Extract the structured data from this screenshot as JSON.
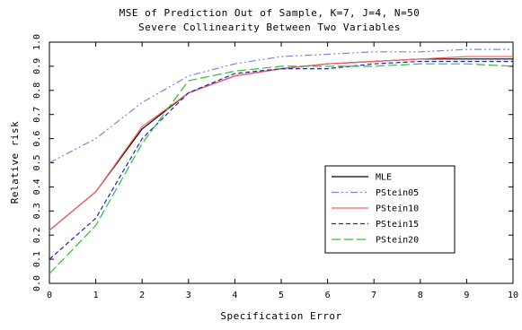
{
  "chart_data": {
    "type": "line",
    "title": "MSE of Prediction Out of Sample, K=7, J=4, N=50",
    "subtitle": "Severe Collinearity Between Two Variables",
    "xlabel": "Specification Error",
    "ylabel": "Relative risk",
    "xlim": [
      0,
      10
    ],
    "ylim": [
      0.0,
      1.0
    ],
    "x_ticks": [
      "0",
      "1",
      "2",
      "3",
      "4",
      "5",
      "6",
      "7",
      "8",
      "9",
      "10"
    ],
    "y_ticks": [
      "0.0",
      "0.1",
      "0.2",
      "0.3",
      "0.4",
      "0.5",
      "0.6",
      "0.7",
      "0.8",
      "0.9",
      "1.0"
    ],
    "x": [
      0,
      1,
      2,
      3,
      4,
      5,
      6,
      7,
      8,
      9,
      10
    ],
    "legend_position": "lower-right",
    "series": [
      {
        "name": "MLE",
        "color": "#000000",
        "dash": "solid",
        "values": [
          0.22,
          0.38,
          0.64,
          0.79,
          0.86,
          0.89,
          0.91,
          0.92,
          0.93,
          0.93,
          0.93
        ]
      },
      {
        "name": "PStein05",
        "color": "#8080e0",
        "dash": "dashdotdot",
        "values": [
          0.5,
          0.6,
          0.75,
          0.86,
          0.91,
          0.94,
          0.95,
          0.96,
          0.96,
          0.97,
          0.97
        ]
      },
      {
        "name": "PStein10",
        "color": "#ff6060",
        "dash": "solid",
        "values": [
          0.22,
          0.38,
          0.65,
          0.79,
          0.86,
          0.89,
          0.91,
          0.92,
          0.93,
          0.94,
          0.94
        ]
      },
      {
        "name": "PStein15",
        "color": "#2020c0",
        "dash": "dash",
        "values": [
          0.1,
          0.27,
          0.6,
          0.79,
          0.87,
          0.89,
          0.89,
          0.91,
          0.92,
          0.92,
          0.92
        ]
      },
      {
        "name": "PStein20",
        "color": "#30c030",
        "dash": "longdash",
        "values": [
          0.04,
          0.24,
          0.58,
          0.84,
          0.88,
          0.9,
          0.9,
          0.9,
          0.91,
          0.91,
          0.9
        ]
      }
    ]
  }
}
